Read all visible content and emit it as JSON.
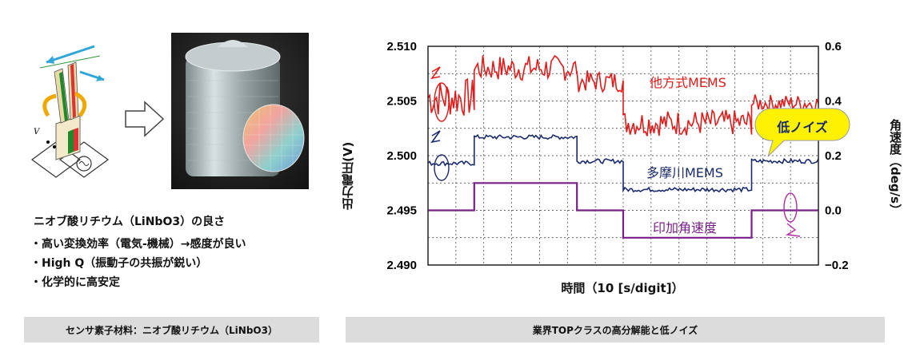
{
  "left_panel": {
    "heading": "ニオブ酸リチウム（LiNbO3）の良さ",
    "bullets": [
      "・高い変換効率（電気-機械）→感度が良い",
      "・High Q（振動子の共振が鋭い）",
      "・化学的に高安定"
    ],
    "caption": "センサ素子材料：ニオブ酸リチウム（LiNbO3）",
    "diagram_label": "V"
  },
  "chart_caption": "業界TOPクラスの高分解能と低ノイズ",
  "chart_data": {
    "type": "line",
    "xlabel": "時間（10 [s/digit]）",
    "ylabel": "出力電圧(V)",
    "ylabel_right": "角速度（deg/s）",
    "ylim": [
      2.49,
      2.51
    ],
    "ylim_right": [
      -0.2,
      0.6
    ],
    "yticks": [
      "2.510",
      "2.505",
      "2.500",
      "2.495",
      "2.490"
    ],
    "yticks_right": [
      "0.6",
      "0.4",
      "0.2",
      "0.0",
      "−0.2"
    ],
    "grid": true,
    "callout": "低ノイズ",
    "series": [
      {
        "name": "他方式MEMS",
        "color": "#e21a1a",
        "axis": "left",
        "segments": [
          {
            "x": [
              0,
              9
            ],
            "mean": 2.5053,
            "noise": 0.0018
          },
          {
            "x": [
              9,
              29
            ],
            "mean": 2.508,
            "noise": 0.0012
          },
          {
            "x": [
              29,
              38
            ],
            "mean": 2.5068,
            "noise": 0.001
          },
          {
            "x": [
              38,
              63
            ],
            "mean": 2.503,
            "noise": 0.0012
          },
          {
            "x": [
              63,
              76
            ],
            "mean": 2.5048,
            "noise": 0.0008
          }
        ]
      },
      {
        "name": "多摩川MEMS",
        "color": "#1a2a6c",
        "axis": "left",
        "segments": [
          {
            "x": [
              0,
              9
            ],
            "mean": 2.4993,
            "noise": 0.0002
          },
          {
            "x": [
              9,
              29
            ],
            "mean": 2.5017,
            "noise": 0.0002
          },
          {
            "x": [
              29,
              38
            ],
            "mean": 2.4995,
            "noise": 0.0002
          },
          {
            "x": [
              38,
              63
            ],
            "mean": 2.4969,
            "noise": 0.0002
          },
          {
            "x": [
              63,
              76
            ],
            "mean": 2.4995,
            "noise": 0.0002
          }
        ]
      },
      {
        "name": "印加角速度",
        "color": "#7a1f8a",
        "axis": "right",
        "steps": [
          {
            "x": [
              0,
              9
            ],
            "value": 0.0
          },
          {
            "x": [
              9,
              29
            ],
            "value": 0.1
          },
          {
            "x": [
              29,
              38
            ],
            "value": 0.0
          },
          {
            "x": [
              38,
              63
            ],
            "value": -0.1
          },
          {
            "x": [
              63,
              76
            ],
            "value": 0.0
          }
        ]
      }
    ]
  }
}
